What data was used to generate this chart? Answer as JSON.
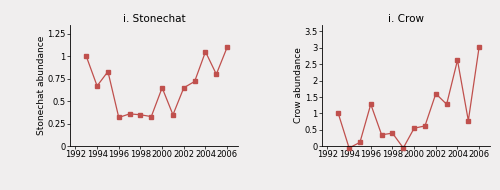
{
  "stonechat": {
    "title": "i. Stonechat",
    "ylabel": "Stonechat abundance",
    "years": [
      1993,
      1994,
      1995,
      1996,
      1997,
      1998,
      1999,
      2000,
      2001,
      2002,
      2003,
      2004,
      2005,
      2006
    ],
    "values": [
      1.0,
      0.67,
      0.83,
      0.32,
      0.36,
      0.35,
      0.33,
      0.65,
      0.35,
      0.65,
      0.72,
      1.05,
      0.8,
      1.1
    ],
    "ylim": [
      0,
      1.35
    ],
    "yticks": [
      0,
      0.25,
      0.5,
      0.75,
      1.0,
      1.25
    ],
    "xticks": [
      1992,
      1994,
      1996,
      1998,
      2000,
      2002,
      2004,
      2006
    ]
  },
  "crow": {
    "title": "i. Crow",
    "ylabel": "Crow abundance",
    "years": [
      1993,
      1994,
      1995,
      1996,
      1997,
      1998,
      1999,
      2000,
      2001,
      2002,
      2003,
      2004,
      2005,
      2006
    ],
    "values": [
      1.0,
      -0.05,
      0.12,
      1.28,
      0.35,
      0.4,
      -0.05,
      0.55,
      0.62,
      1.6,
      1.28,
      2.62,
      0.78,
      3.03
    ],
    "ylim": [
      0,
      3.7
    ],
    "yticks": [
      0,
      0.5,
      1.0,
      1.5,
      2.0,
      2.5,
      3.0,
      3.5
    ],
    "xticks": [
      1992,
      1994,
      1996,
      1998,
      2000,
      2002,
      2004,
      2006
    ]
  },
  "line_color": "#c0504d",
  "marker": "s",
  "markersize": 2.5,
  "linewidth": 0.9,
  "bg_color": "#f0eeee",
  "plot_bg": "#f0eeee",
  "title_fontsize": 7.5,
  "label_fontsize": 6.5,
  "tick_fontsize": 6.0
}
